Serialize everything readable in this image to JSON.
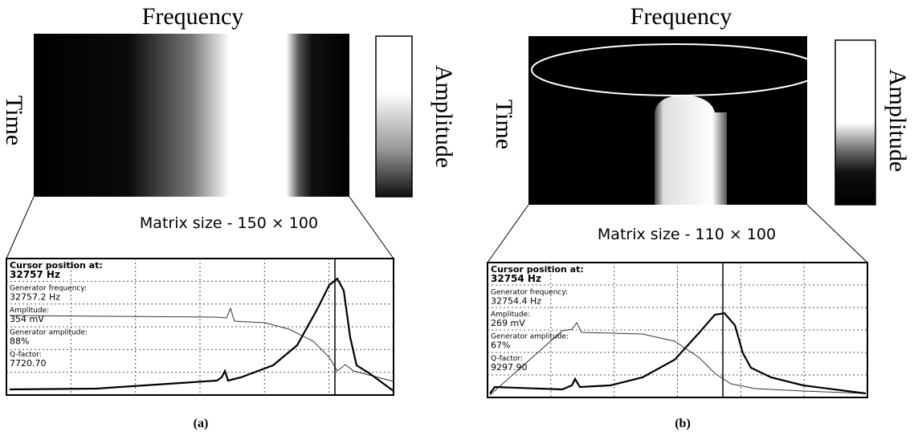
{
  "panels": [
    {
      "label": "(a)",
      "x_axis_label": "Frequency",
      "y_axis_label": "Time",
      "colorbar_label": "Amplitude",
      "matrix_size": "Matrix size - 150 × 100",
      "readout": [
        {
          "label": "Cursor position at:",
          "value": "32757 Hz"
        },
        {
          "label": "Generator frequency:",
          "value": "32757.2 Hz"
        },
        {
          "label": "Amplitude:",
          "value": "354 mV"
        },
        {
          "label": "Generator amplitude:",
          "value": "88%"
        },
        {
          "label": "Q-factor:",
          "value": "7720.70"
        }
      ]
    },
    {
      "label": "(b)",
      "x_axis_label": "Frequency",
      "y_axis_label": "Time",
      "colorbar_label": "Amplitude",
      "matrix_size": "Matrix size - 110 × 100",
      "readout": [
        {
          "label": "Cursor position at:",
          "value": "32754 Hz"
        },
        {
          "label": "Generator frequency:",
          "value": "32754.4 Hz"
        },
        {
          "label": "Amplitude:",
          "value": "269 mV"
        },
        {
          "label": "Generator amplitude:",
          "value": "67%"
        },
        {
          "label": "Q-factor:",
          "value": "9297.90"
        }
      ]
    }
  ]
}
